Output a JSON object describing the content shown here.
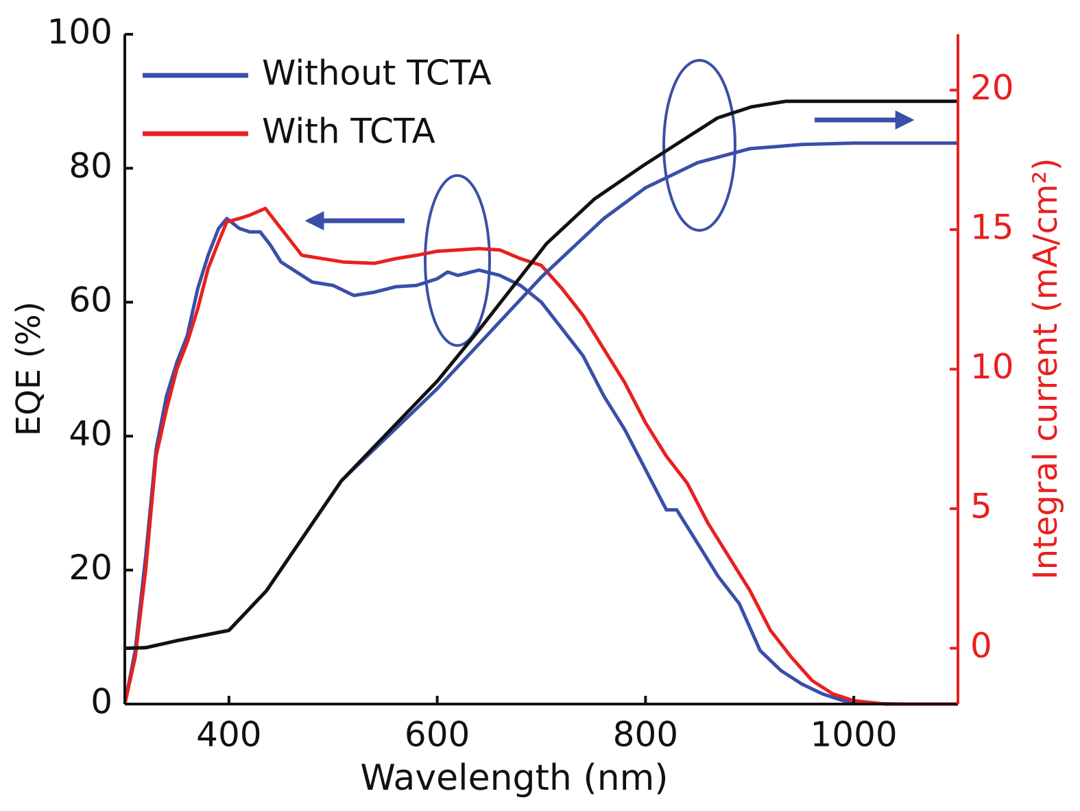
{
  "chart_data": {
    "type": "line",
    "xlabel": "Wavelength (nm)",
    "ylabel": "EQE (%)",
    "y2label": "Integral current (mA/cm²)",
    "xlim": [
      300,
      1100
    ],
    "xticks": [
      400,
      600,
      800,
      1000
    ],
    "ylim": [
      0,
      100
    ],
    "yticks": [
      0,
      20,
      40,
      60,
      80,
      100
    ],
    "y2lim": [
      -2,
      22
    ],
    "y2ticks": [
      0,
      5,
      10,
      15,
      20
    ],
    "legend": "upper left",
    "series": [
      {
        "name": "Without TCTA",
        "color": "#3a4fa8",
        "x": [
          300,
          310,
          320,
          330,
          340,
          350,
          360,
          370,
          380,
          390,
          398,
          410,
          420,
          430,
          440,
          450,
          460,
          480,
          500,
          520,
          540,
          560,
          580,
          600,
          610,
          620,
          640,
          660,
          680,
          700,
          720,
          740,
          760,
          780,
          800,
          820,
          830,
          850,
          870,
          890,
          910,
          930,
          950,
          970,
          990,
          1010,
          1050,
          1100
        ],
        "values": [
          0,
          8,
          22,
          38,
          46,
          51,
          55,
          62,
          67,
          71,
          72.5,
          71,
          70.5,
          70.5,
          68.5,
          66,
          65,
          63,
          62.5,
          61,
          61.5,
          62.3,
          62.5,
          63.5,
          64.5,
          64,
          64.8,
          64,
          62.5,
          60,
          56,
          52,
          46,
          41,
          35,
          29,
          29,
          24,
          19,
          15,
          8,
          5,
          3,
          1.5,
          0.5,
          0.1,
          0,
          0
        ]
      },
      {
        "name": "With TCTA",
        "color": "#e8201f",
        "x": [
          300,
          310,
          320,
          330,
          340,
          350,
          360,
          370,
          380,
          390,
          398,
          410,
          420,
          435,
          450,
          460,
          470,
          490,
          510,
          540,
          560,
          580,
          600,
          620,
          640,
          660,
          680,
          700,
          720,
          740,
          760,
          780,
          800,
          820,
          840,
          860,
          880,
          900,
          920,
          940,
          960,
          980,
          1000,
          1030,
          1100
        ],
        "values": [
          0,
          7,
          20,
          37,
          44,
          50,
          54,
          59,
          65,
          69,
          72,
          72.5,
          73,
          74,
          71,
          69,
          67,
          66.5,
          66,
          65.8,
          66.5,
          67,
          67.6,
          67.8,
          68,
          67.8,
          66.5,
          65.5,
          62,
          58,
          53,
          48,
          42,
          37,
          33,
          27,
          22,
          17,
          11,
          7,
          3.5,
          1.5,
          0.5,
          0,
          0
        ]
      },
      {
        "color": "#3a4fa8",
        "axis": "y2",
        "x": [
          300,
          320,
          350,
          400,
          436,
          508,
          600,
          640,
          700,
          760,
          800,
          850,
          900,
          950,
          1000,
          1100
        ],
        "values": [
          0,
          0.02,
          0.27,
          0.64,
          2.06,
          6.0,
          9.3,
          10.9,
          13.3,
          15.4,
          16.5,
          17.4,
          17.9,
          18.05,
          18.1,
          18.1
        ]
      },
      {
        "color": "#111111",
        "axis": "y2",
        "x": [
          300,
          320,
          350,
          400,
          436,
          508,
          600,
          640,
          705,
          751,
          798,
          869,
          902,
          935,
          1000,
          1100
        ],
        "values": [
          0,
          0.02,
          0.27,
          0.64,
          2.06,
          6.0,
          9.57,
          11.4,
          14.5,
          16.1,
          17.3,
          19.0,
          19.4,
          19.6,
          19.6,
          19.6
        ]
      }
    ]
  }
}
